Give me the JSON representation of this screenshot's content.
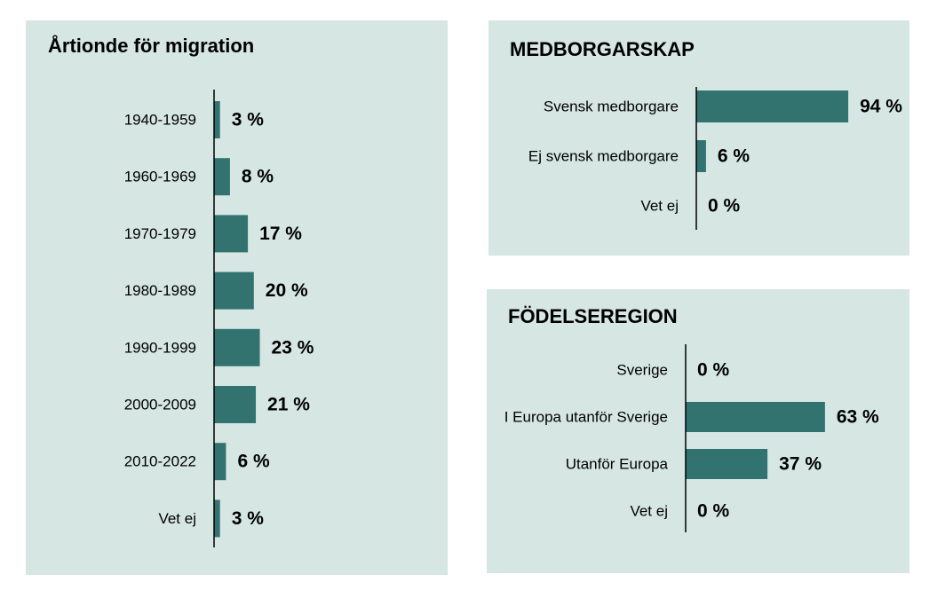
{
  "colors": {
    "panel_bg": "#d5e6e3",
    "bar": "#327370",
    "page_bg": "#ffffff"
  },
  "chart_data": [
    {
      "type": "bar",
      "orientation": "horizontal",
      "title": "Årtionde för migration",
      "categories": [
        "1940-1959",
        "1960-1969",
        "1970-1979",
        "1980-1989",
        "1990-1999",
        "2000-2009",
        "2010-2022",
        "Vet ej"
      ],
      "values": [
        3,
        8,
        17,
        20,
        23,
        21,
        6,
        3
      ],
      "value_labels": [
        "3 %",
        "8 %",
        "17 %",
        "20 %",
        "23 %",
        "21 %",
        "6 %",
        "3 %"
      ],
      "unit": "%",
      "xlim": [
        0,
        100
      ],
      "grid": false
    },
    {
      "type": "bar",
      "orientation": "horizontal",
      "title": "MEDBORGARSKAP",
      "categories": [
        "Svensk medborgare",
        "Ej svensk medborgare",
        "Vet ej"
      ],
      "values": [
        94,
        6,
        0
      ],
      "value_labels": [
        "94 %",
        "6 %",
        "0 %"
      ],
      "unit": "%",
      "xlim": [
        0,
        100
      ],
      "grid": false
    },
    {
      "type": "bar",
      "orientation": "horizontal",
      "title": "FÖDELSEREGION",
      "categories": [
        "Sverige",
        "I Europa utanför Sverige",
        "Utanför Europa",
        "Vet ej"
      ],
      "values": [
        0,
        63,
        37,
        0
      ],
      "value_labels": [
        "0 %",
        "63 %",
        "37 %",
        "0 %"
      ],
      "unit": "%",
      "xlim": [
        0,
        100
      ],
      "grid": false
    }
  ]
}
